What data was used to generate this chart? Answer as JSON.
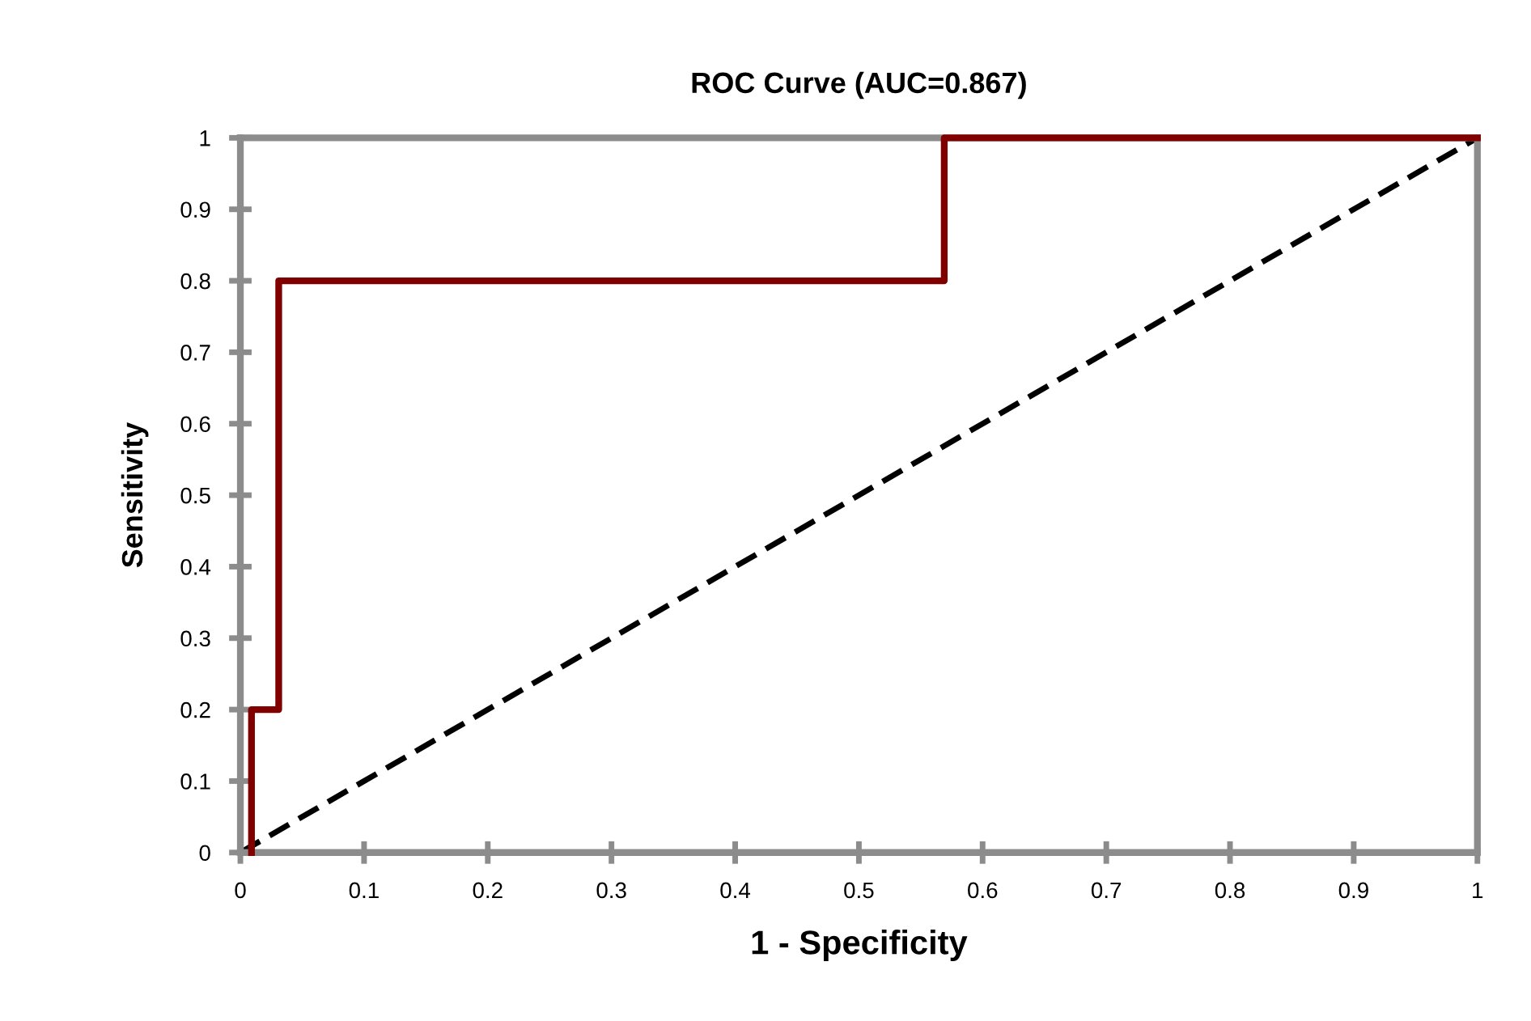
{
  "chart_data": {
    "type": "line",
    "title": "ROC Curve (AUC=0.867)",
    "xlabel": "1 - Specificity",
    "ylabel": "Sensitivity",
    "series": [
      {
        "type": "step",
        "color": "#800000",
        "line_style": "solid",
        "x": [
          0.009,
          0.009,
          0.031,
          0.031,
          0.569,
          0.569,
          1
        ],
        "values": [
          0,
          0.2,
          0.2,
          0.8,
          0.8,
          1,
          1
        ]
      },
      {
        "color": "#000000",
        "line_style": "dashed",
        "x": [
          0,
          1
        ],
        "values": [
          0,
          1
        ]
      }
    ],
    "xlim": [
      0,
      1
    ],
    "ylim": [
      0,
      1
    ],
    "xticks": [
      0,
      0.1,
      0.2,
      0.3,
      0.4,
      0.5,
      0.6,
      0.7,
      0.8,
      0.9,
      1
    ],
    "yticks": [
      0,
      0.1,
      0.2,
      0.3,
      0.4,
      0.5,
      0.6,
      0.7,
      0.8,
      0.9,
      1
    ],
    "grid": false,
    "legend": false,
    "marker": "none"
  }
}
